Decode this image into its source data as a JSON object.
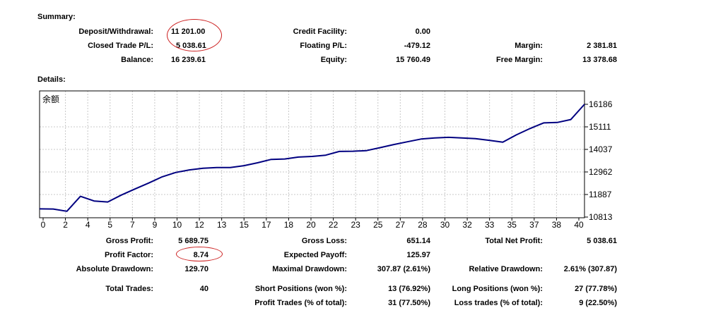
{
  "summary": {
    "title": "Summary:",
    "rows": [
      [
        {
          "label": "Deposit/Withdrawal:",
          "value": "11 201.00"
        },
        {
          "label": "Credit Facility:",
          "value": "0.00"
        },
        {
          "label": "",
          "value": ""
        }
      ],
      [
        {
          "label": "Closed Trade P/L:",
          "value": "5 038.61"
        },
        {
          "label": "Floating P/L:",
          "value": "-479.12"
        },
        {
          "label": "Margin:",
          "value": "2 381.81"
        }
      ],
      [
        {
          "label": "Balance:",
          "value": "16 239.61"
        },
        {
          "label": "Equity:",
          "value": "15 760.49"
        },
        {
          "label": "Free Margin:",
          "value": "13 378.68"
        }
      ]
    ]
  },
  "details": {
    "title": "Details:"
  },
  "chart_data": {
    "type": "line",
    "series_name": "余额",
    "color": "#000080",
    "xlim": [
      0,
      40
    ],
    "ylim": [
      10813,
      16186
    ],
    "x_ticks": [
      "0",
      "2",
      "4",
      "5",
      "7",
      "9",
      "10",
      "12",
      "13",
      "15",
      "17",
      "18",
      "20",
      "22",
      "23",
      "25",
      "27",
      "28",
      "30",
      "32",
      "33",
      "35",
      "37",
      "38",
      "40"
    ],
    "y_ticks": [
      "16186",
      "15111",
      "14037",
      "12962",
      "11887",
      "10813"
    ],
    "grid": true,
    "series": [
      {
        "name": "余额",
        "x": [
          0,
          1,
          2,
          3,
          4,
          5,
          6,
          7,
          8,
          9,
          10,
          11,
          12,
          13,
          14,
          15,
          16,
          17,
          18,
          19,
          20,
          21,
          22,
          23,
          24,
          25,
          26,
          27,
          28,
          29,
          30,
          31,
          32,
          33,
          34,
          35,
          36,
          37,
          38,
          39,
          40
        ],
        "y": [
          11201,
          11195,
          11090,
          11800,
          11580,
          11530,
          11860,
          12150,
          12430,
          12730,
          12940,
          13060,
          13140,
          13170,
          13170,
          13260,
          13400,
          13560,
          13580,
          13670,
          13700,
          13760,
          13940,
          13950,
          13980,
          14120,
          14270,
          14400,
          14530,
          14580,
          14610,
          14580,
          14550,
          14470,
          14380,
          14730,
          15030,
          15300,
          15320,
          15460,
          16186
        ]
      }
    ]
  },
  "stats": {
    "rows": [
      [
        {
          "label": "Gross Profit:",
          "value": "5 689.75"
        },
        {
          "label": "Gross Loss:",
          "value": "651.14"
        },
        {
          "label": "Total Net Profit:",
          "value": "5 038.61"
        }
      ],
      [
        {
          "label": "Profit Factor:",
          "value": "8.74"
        },
        {
          "label": "Expected Payoff:",
          "value": "125.97"
        },
        {
          "label": "",
          "value": ""
        }
      ],
      [
        {
          "label": "Absolute Drawdown:",
          "value": "129.70"
        },
        {
          "label": "Maximal Drawdown:",
          "value": "307.87 (2.61%)"
        },
        {
          "label": "Relative Drawdown:",
          "value": "2.61% (307.87)"
        }
      ],
      [
        {
          "label": "Total Trades:",
          "value": "40"
        },
        {
          "label": "Short Positions (won %):",
          "value": "13 (76.92%)"
        },
        {
          "label": "Long Positions (won %):",
          "value": "27 (77.78%)"
        }
      ],
      [
        {
          "label": "",
          "value": ""
        },
        {
          "label": "Profit Trades (% of total):",
          "value": "31 (77.50%)"
        },
        {
          "label": "Loss trades (% of total):",
          "value": "9 (22.50%)"
        }
      ]
    ]
  }
}
